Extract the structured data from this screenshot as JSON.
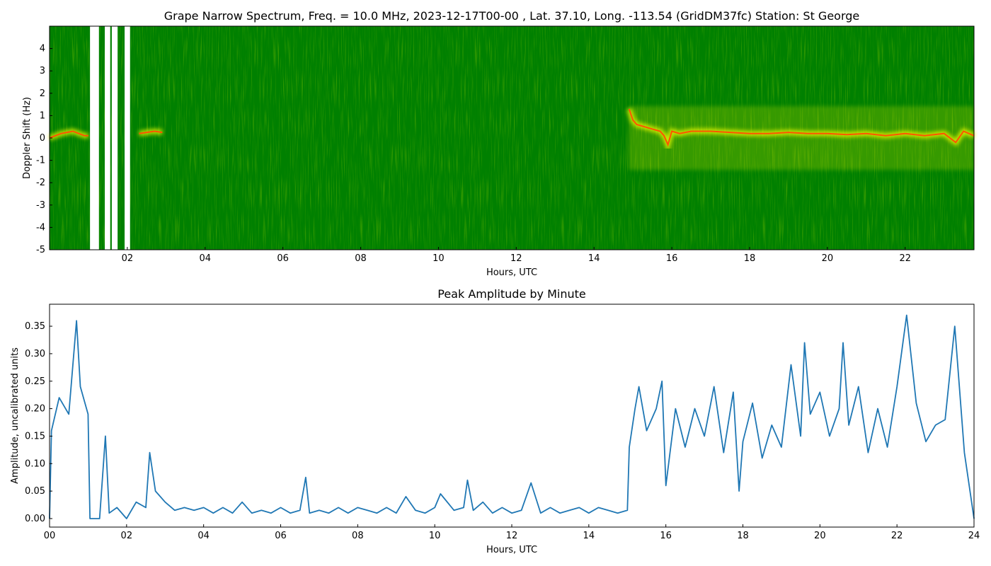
{
  "chart_data": [
    {
      "type": "spectrogram",
      "title": "Grape Narrow Spectrum, Freq. = 10.0 MHz, 2023-12-17T00-00 , Lat.  37.10, Long. -113.54 (GridDM37fc) Station: St George",
      "xlabel": "Hours, UTC",
      "ylabel": "Doppler Shift (Hz)",
      "xlim": [
        0,
        23.77
      ],
      "ylim": [
        -5,
        5
      ],
      "xticks": [
        {
          "value": 2,
          "label": "02"
        },
        {
          "value": 4,
          "label": "04"
        },
        {
          "value": 6,
          "label": "06"
        },
        {
          "value": 8,
          "label": "08"
        },
        {
          "value": 10,
          "label": "10"
        },
        {
          "value": 12,
          "label": "12"
        },
        {
          "value": 14,
          "label": "14"
        },
        {
          "value": 16,
          "label": "16"
        },
        {
          "value": 18,
          "label": "18"
        },
        {
          "value": 20,
          "label": "20"
        },
        {
          "value": 22,
          "label": "22"
        }
      ],
      "yticks": [
        -5,
        -4,
        -3,
        -2,
        -1,
        0,
        1,
        2,
        3,
        4
      ],
      "background": "#008000",
      "gaps": [
        [
          1.04,
          1.27
        ],
        [
          1.42,
          1.56
        ],
        [
          1.6,
          1.75
        ],
        [
          1.93,
          2.07
        ]
      ],
      "trace": {
        "color": "#ff5500",
        "x": [
          0,
          0.15,
          0.3,
          0.45,
          0.6,
          0.75,
          0.9,
          1.0,
          1.3,
          2.3,
          2.5,
          2.7,
          2.9,
          3.0,
          14.9,
          15.0,
          15.1,
          15.3,
          15.5,
          15.7,
          15.8,
          15.9,
          16.0,
          16.2,
          16.5,
          17,
          17.5,
          18,
          18.5,
          19,
          19.5,
          20,
          20.5,
          21,
          21.5,
          22,
          22.5,
          23,
          23.3,
          23.5,
          23.77
        ],
        "values": [
          0,
          0.1,
          0.2,
          0.25,
          0.3,
          0.2,
          0.1,
          0.1,
          null,
          0.2,
          0.25,
          0.3,
          0.25,
          null,
          1.3,
          0.8,
          0.6,
          0.5,
          0.4,
          0.3,
          0.1,
          -0.3,
          0.3,
          0.2,
          0.3,
          0.3,
          0.25,
          0.2,
          0.2,
          0.25,
          0.2,
          0.2,
          0.15,
          0.2,
          0.1,
          0.2,
          0.1,
          0.2,
          -0.2,
          0.3,
          0.1
        ]
      }
    },
    {
      "type": "line",
      "title": "Peak Amplitude by Minute",
      "xlabel": "Hours, UTC",
      "ylabel": "Amplitude, uncalibrated units",
      "xlim": [
        0,
        24
      ],
      "ylim": [
        -0.0155,
        0.39
      ],
      "xticks": [
        {
          "value": 0,
          "label": "00"
        },
        {
          "value": 2,
          "label": "02"
        },
        {
          "value": 4,
          "label": "04"
        },
        {
          "value": 6,
          "label": "06"
        },
        {
          "value": 8,
          "label": "08"
        },
        {
          "value": 10,
          "label": "10"
        },
        {
          "value": 12,
          "label": "12"
        },
        {
          "value": 14,
          "label": "14"
        },
        {
          "value": 16,
          "label": "16"
        },
        {
          "value": 18,
          "label": "18"
        },
        {
          "value": 20,
          "label": "20"
        },
        {
          "value": 22,
          "label": "22"
        },
        {
          "value": 24,
          "label": "24"
        }
      ],
      "yticks": [
        {
          "value": 0,
          "label": "0.00"
        },
        {
          "value": 0.05,
          "label": "0.05"
        },
        {
          "value": 0.1,
          "label": "0.10"
        },
        {
          "value": 0.15,
          "label": "0.15"
        },
        {
          "value": 0.2,
          "label": "0.20"
        },
        {
          "value": 0.25,
          "label": "0.25"
        },
        {
          "value": 0.3,
          "label": "0.30"
        },
        {
          "value": 0.35,
          "label": "0.35"
        }
      ],
      "color": "#1f77b4",
      "x": [
        0,
        0.05,
        0.25,
        0.5,
        0.7,
        0.8,
        1.0,
        1.05,
        1.3,
        1.45,
        1.55,
        1.75,
        2.0,
        2.25,
        2.5,
        2.6,
        2.75,
        3.0,
        3.25,
        3.5,
        3.75,
        4.0,
        4.25,
        4.5,
        4.75,
        5.0,
        5.25,
        5.5,
        5.75,
        6.0,
        6.25,
        6.5,
        6.65,
        6.75,
        7.0,
        7.25,
        7.5,
        7.75,
        8.0,
        8.25,
        8.5,
        8.75,
        9.0,
        9.25,
        9.5,
        9.75,
        10.0,
        10.15,
        10.5,
        10.75,
        10.85,
        11.0,
        11.25,
        11.5,
        11.75,
        12.0,
        12.25,
        12.5,
        12.75,
        13.0,
        13.25,
        13.5,
        13.75,
        14.0,
        14.25,
        14.5,
        14.75,
        15.0,
        15.05,
        15.2,
        15.3,
        15.5,
        15.75,
        15.9,
        16.0,
        16.25,
        16.5,
        16.75,
        17.0,
        17.25,
        17.5,
        17.75,
        17.9,
        18.0,
        18.25,
        18.5,
        18.75,
        19.0,
        19.25,
        19.5,
        19.6,
        19.75,
        20.0,
        20.25,
        20.5,
        20.6,
        20.75,
        21.0,
        21.25,
        21.5,
        21.75,
        22.0,
        22.25,
        22.5,
        22.75,
        23.0,
        23.25,
        23.5,
        23.75,
        24.0
      ],
      "values": [
        0.0,
        0.16,
        0.22,
        0.19,
        0.36,
        0.24,
        0.19,
        0.0,
        0.0,
        0.15,
        0.01,
        0.02,
        0.0,
        0.03,
        0.02,
        0.12,
        0.05,
        0.03,
        0.015,
        0.02,
        0.015,
        0.02,
        0.01,
        0.02,
        0.01,
        0.03,
        0.01,
        0.015,
        0.01,
        0.02,
        0.01,
        0.015,
        0.075,
        0.01,
        0.015,
        0.01,
        0.02,
        0.01,
        0.02,
        0.015,
        0.01,
        0.02,
        0.01,
        0.04,
        0.015,
        0.01,
        0.02,
        0.045,
        0.015,
        0.02,
        0.07,
        0.015,
        0.03,
        0.01,
        0.02,
        0.01,
        0.015,
        0.065,
        0.01,
        0.02,
        0.01,
        0.015,
        0.02,
        0.01,
        0.02,
        0.015,
        0.01,
        0.015,
        0.13,
        0.2,
        0.24,
        0.16,
        0.2,
        0.25,
        0.06,
        0.2,
        0.13,
        0.2,
        0.15,
        0.24,
        0.12,
        0.23,
        0.05,
        0.14,
        0.21,
        0.11,
        0.17,
        0.13,
        0.28,
        0.15,
        0.32,
        0.19,
        0.23,
        0.15,
        0.2,
        0.32,
        0.17,
        0.24,
        0.12,
        0.2,
        0.13,
        0.24,
        0.37,
        0.21,
        0.14,
        0.17,
        0.18,
        0.35,
        0.12,
        0.0
      ]
    }
  ]
}
